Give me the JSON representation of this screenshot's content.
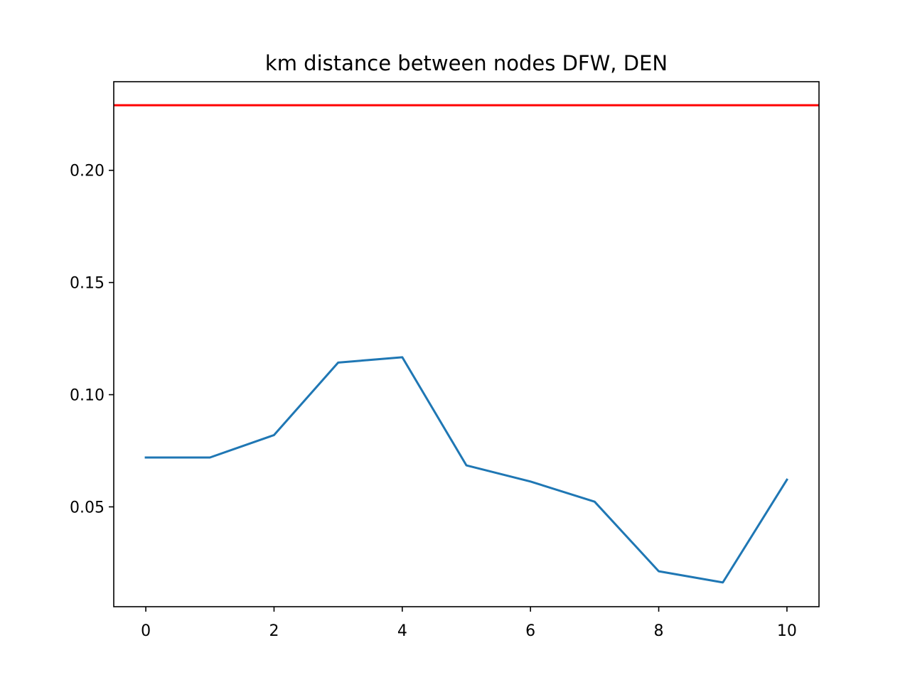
{
  "chart_data": {
    "type": "line",
    "title": "km distance between nodes DFW, DEN",
    "xlabel": "",
    "ylabel": "",
    "xlim": [
      -0.5,
      10.5
    ],
    "ylim": [
      0.0055,
      0.2395
    ],
    "x_ticks": [
      0,
      2,
      4,
      6,
      8,
      10
    ],
    "x_tick_labels": [
      "0",
      "2",
      "4",
      "6",
      "8",
      "10"
    ],
    "y_ticks": [
      0.05,
      0.1,
      0.15,
      0.2
    ],
    "y_tick_labels": [
      "0.05",
      "0.10",
      "0.15",
      "0.20"
    ],
    "grid": false,
    "series": [
      {
        "color": "#1f77b4",
        "x": [
          0,
          1,
          2,
          3,
          4,
          5,
          6,
          7,
          8,
          9,
          10
        ],
        "y": [
          0.072,
          0.072,
          0.082,
          0.1143,
          0.1167,
          0.0685,
          0.0613,
          0.0523,
          0.0213,
          0.0163,
          0.0621
        ]
      }
    ],
    "hlines": [
      {
        "y": 0.229,
        "color": "#ff0000"
      }
    ]
  }
}
